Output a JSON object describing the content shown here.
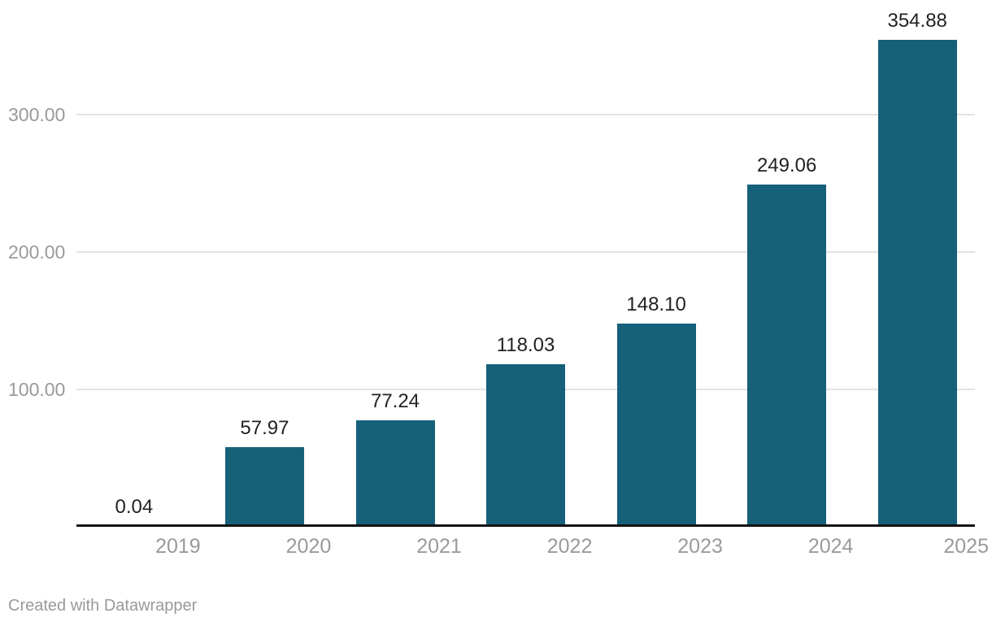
{
  "chart_data": {
    "type": "bar",
    "title": "",
    "xlabel": "",
    "ylabel": "",
    "categories": [
      "2019",
      "2020",
      "2021",
      "2022",
      "2023",
      "2024",
      "2025"
    ],
    "values": [
      0.04,
      57.97,
      77.24,
      118.03,
      148.1,
      249.06,
      354.88
    ],
    "value_labels": [
      "0.04",
      "57.97",
      "77.24",
      "118.03",
      "148.10",
      "249.06",
      "354.88"
    ],
    "y_ticks": [
      {
        "value": 100,
        "label": "100.00"
      },
      {
        "value": 200,
        "label": "200.00"
      },
      {
        "value": 300,
        "label": "300.00"
      }
    ],
    "ylim": [
      0,
      384
    ],
    "grid": "horizontal",
    "legend": "none",
    "bar_color": "#16607a",
    "value_label_color": "#222222",
    "axis_label_color": "#9a9a9a",
    "gridline_color": "#e3e3e3",
    "axis_line_color": "#141414"
  },
  "footer": {
    "credit": "Created with Datawrapper"
  }
}
